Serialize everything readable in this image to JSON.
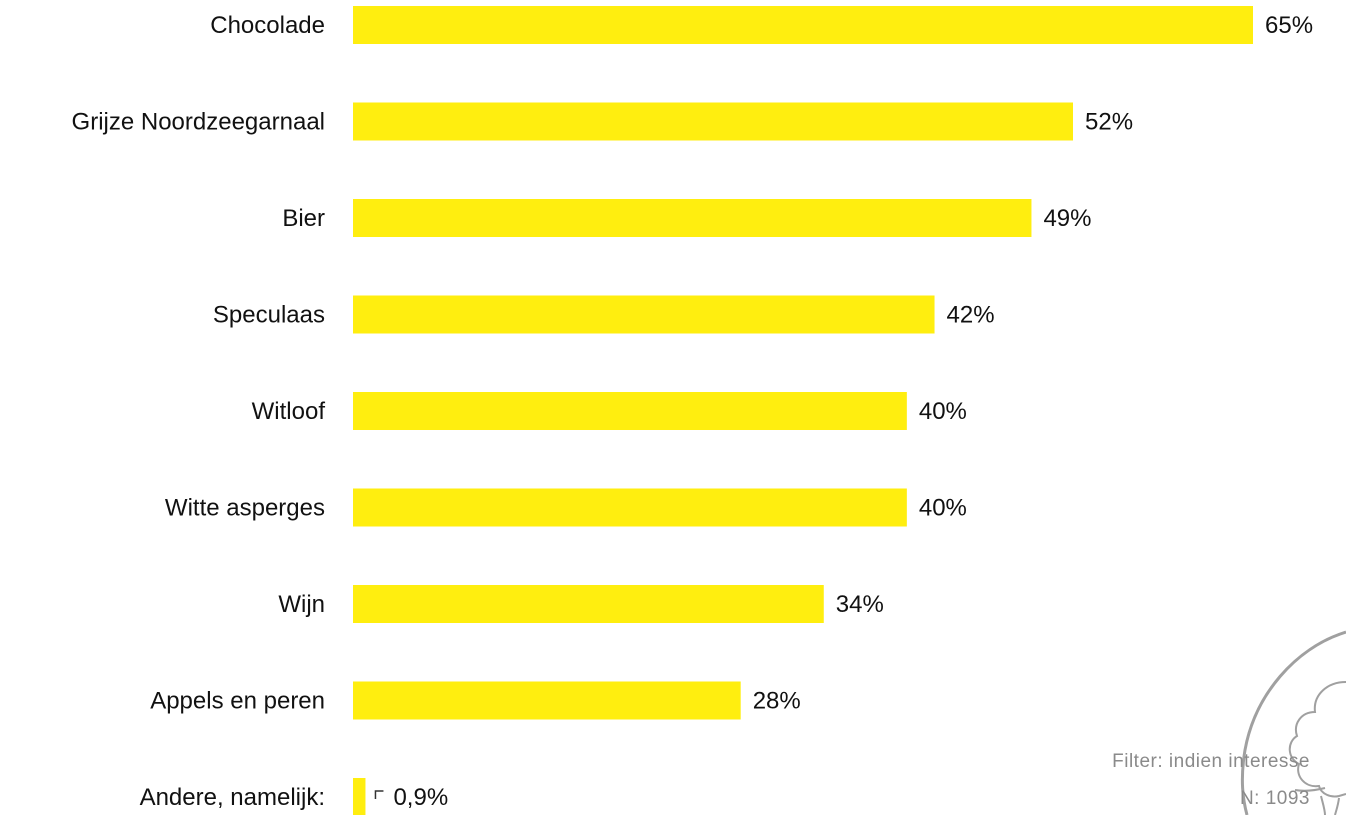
{
  "chart_data": {
    "type": "bar",
    "orientation": "horizontal",
    "categories": [
      "Chocolade",
      "Grijze Noordzeegarnaal",
      "Bier",
      "Speculaas",
      "Witloof",
      "Witte asperges",
      "Wijn",
      "Appels en peren",
      "Andere, namelijk:"
    ],
    "values": [
      65,
      52,
      49,
      42,
      40,
      40,
      34,
      28,
      0.9
    ],
    "value_labels": [
      "65%",
      "52%",
      "49%",
      "42%",
      "40%",
      "40%",
      "34%",
      "28%",
      "0,9%"
    ],
    "unit": "%",
    "xlim": [
      0,
      65
    ],
    "bar_color": "#FFEE0F",
    "grid": false,
    "legend": "none"
  },
  "footer": {
    "filter_text": "Filter: indien interesse",
    "n_text": "N: 1093"
  },
  "logo": {
    "icon": "tree-logo-icon",
    "color": "#9a9a9a"
  }
}
